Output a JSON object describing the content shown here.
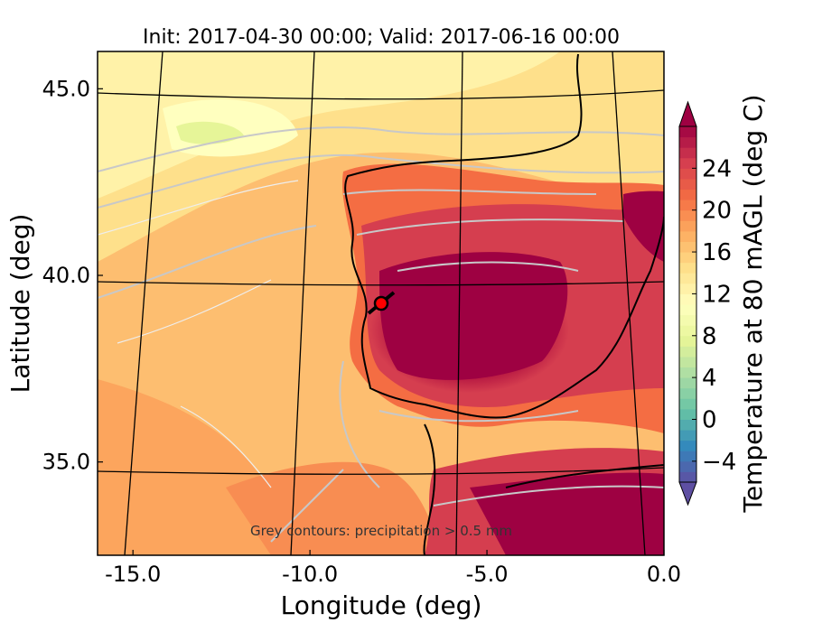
{
  "chart_data": {
    "type": "heatmap",
    "title": "Init: 2017-04-30 00:00; Valid: 2017-06-16 00:00",
    "xlabel": "Longitude (deg)",
    "ylabel": "Latitude (deg)",
    "colorbar_label": "Temperature at 80 mAGL (deg C)",
    "annotation": "Grey contours: precipitation > 0.5 mm",
    "xlim": [
      -16.0,
      0.0
    ],
    "ylim": [
      32.5,
      46.0
    ],
    "x_ticks": [
      {
        "value": -15.0,
        "label": "-15.0"
      },
      {
        "value": -10.0,
        "label": "-10.0"
      },
      {
        "value": -5.0,
        "label": "-5.0"
      },
      {
        "value": 0.0,
        "label": "0.0"
      }
    ],
    "y_ticks": [
      {
        "value": 45.0,
        "label": "45.0"
      },
      {
        "value": 40.0,
        "label": "40.0"
      },
      {
        "value": 35.0,
        "label": "35.0"
      }
    ],
    "colorbar_range": [
      -6,
      28
    ],
    "colorbar_ticks": [
      {
        "value": -4,
        "label": "−4"
      },
      {
        "value": 0,
        "label": "0"
      },
      {
        "value": 4,
        "label": "4"
      },
      {
        "value": 8,
        "label": "8"
      },
      {
        "value": 12,
        "label": "12"
      },
      {
        "value": 16,
        "label": "16"
      },
      {
        "value": 20,
        "label": "20"
      },
      {
        "value": 24,
        "label": "24"
      }
    ],
    "colormap": "Spectral_r",
    "colormap_stops": [
      "#5e4fa2",
      "#3288bd",
      "#66c2a5",
      "#abdda4",
      "#e6f598",
      "#ffffbf",
      "#fee08b",
      "#fdae61",
      "#f46d43",
      "#d53e4f",
      "#9e0142"
    ],
    "marker": {
      "lon": -7.6,
      "lat": 39.3,
      "color": "#ff0000"
    },
    "grid": true
  }
}
